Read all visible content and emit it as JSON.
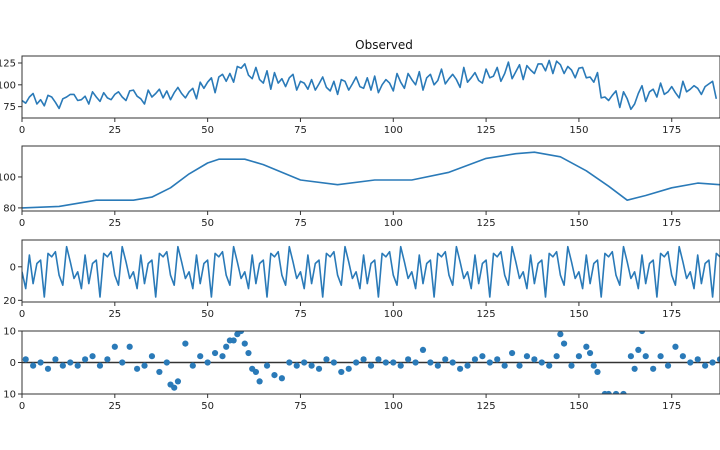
{
  "chart_data": [
    {
      "type": "line",
      "title": "Observed",
      "xlabel": "",
      "ylabel": "",
      "xlim": [
        0,
        188
      ],
      "ylim": [
        62,
        133
      ],
      "x_ticks": [
        0,
        25,
        50,
        75,
        100,
        125,
        150,
        175
      ],
      "y_ticks": [
        75,
        100,
        125
      ],
      "y_tick_labels": [
        "75",
        "100",
        "125"
      ],
      "grid": false,
      "series": [
        {
          "color": "#2a7ab8",
          "values": [
            82,
            79,
            86,
            90,
            78,
            83,
            76,
            88,
            86,
            80,
            73,
            84,
            86,
            89,
            89,
            82,
            83,
            87,
            78,
            92,
            86,
            81,
            91,
            85,
            83,
            89,
            92,
            86,
            82,
            93,
            94,
            87,
            84,
            78,
            94,
            86,
            90,
            95,
            85,
            93,
            83,
            91,
            97,
            90,
            85,
            92,
            96,
            84,
            103,
            96,
            103,
            108,
            91,
            109,
            112,
            104,
            113,
            103,
            121,
            119,
            124,
            111,
            107,
            120,
            106,
            102,
            116,
            95,
            114,
            102,
            107,
            98,
            108,
            112,
            94,
            104,
            102,
            95,
            106,
            94,
            101,
            109,
            97,
            93,
            104,
            89,
            106,
            104,
            94,
            101,
            109,
            98,
            96,
            108,
            94,
            110,
            91,
            100,
            106,
            102,
            93,
            113,
            103,
            96,
            113,
            106,
            100,
            115,
            94,
            108,
            112,
            100,
            105,
            118,
            101,
            107,
            112,
            106,
            97,
            120,
            103,
            108,
            114,
            105,
            102,
            118,
            108,
            110,
            120,
            104,
            113,
            126,
            107,
            115,
            123,
            106,
            122,
            117,
            113,
            124,
            124,
            116,
            128,
            113,
            127,
            123,
            113,
            121,
            117,
            108,
            119,
            120,
            108,
            109,
            103,
            114,
            85,
            86,
            82,
            88,
            93,
            74,
            92,
            84,
            72,
            78,
            90,
            99,
            81,
            92,
            95,
            86,
            102,
            89,
            92,
            98,
            91,
            85,
            104,
            92,
            95,
            99,
            96,
            89,
            98,
            101,
            104,
            84
          ]
        }
      ]
    },
    {
      "type": "line",
      "title": "",
      "xlabel": "",
      "ylabel": "",
      "xlim": [
        0,
        188
      ],
      "ylim": [
        78,
        120
      ],
      "x_ticks": [
        0,
        25,
        50,
        75,
        100,
        125,
        150,
        175
      ],
      "y_ticks": [
        80,
        100
      ],
      "y_tick_labels": [
        "80",
        "100"
      ],
      "grid": false,
      "series": [
        {
          "color": "#2a7ab8",
          "points": [
            [
              0,
              80
            ],
            [
              10,
              81
            ],
            [
              20,
              85
            ],
            [
              30,
              85
            ],
            [
              35,
              87
            ],
            [
              40,
              93
            ],
            [
              45,
              102
            ],
            [
              50,
              109
            ],
            [
              53,
              111.5
            ],
            [
              60,
              111.5
            ],
            [
              65,
              108
            ],
            [
              75,
              98
            ],
            [
              85,
              95
            ],
            [
              95,
              98
            ],
            [
              105,
              98
            ],
            [
              115,
              103
            ],
            [
              125,
              112
            ],
            [
              133,
              115
            ],
            [
              138,
              116
            ],
            [
              145,
              113
            ],
            [
              152,
              104
            ],
            [
              158,
              94
            ],
            [
              163,
              85
            ],
            [
              168,
              88
            ],
            [
              175,
              93
            ],
            [
              182,
              96
            ],
            [
              188,
              95
            ]
          ]
        }
      ]
    },
    {
      "type": "line",
      "title": "",
      "xlabel": "",
      "ylabel": "",
      "xlim": [
        0,
        188
      ],
      "ylim": [
        -21,
        16
      ],
      "x_ticks": [
        0,
        25,
        50,
        75,
        100,
        125,
        150,
        175
      ],
      "y_ticks": [
        0,
        -20
      ],
      "y_tick_labels": [
        "0",
        "20"
      ],
      "grid": false,
      "series": [
        {
          "color": "#2a7ab8",
          "pattern": [
            -3,
            -13,
            7,
            -10,
            2,
            4,
            -18,
            8,
            6,
            9,
            -5,
            -11,
            12,
            3,
            -7
          ],
          "length": 189
        }
      ]
    },
    {
      "type": "scatter",
      "title": "",
      "xlabel": "",
      "ylabel": "",
      "xlim": [
        0,
        188
      ],
      "ylim": [
        -10,
        10
      ],
      "x_ticks": [
        0,
        25,
        50,
        75,
        100,
        125,
        150,
        175
      ],
      "y_ticks": [
        10,
        0,
        -10
      ],
      "y_tick_labels": [
        "10",
        "0",
        "10"
      ],
      "grid": false,
      "baseline": 0,
      "series": [
        {
          "color": "#2a7ab8",
          "points": [
            [
              1,
              1
            ],
            [
              3,
              -1
            ],
            [
              5,
              0
            ],
            [
              7,
              -2
            ],
            [
              9,
              1
            ],
            [
              11,
              -1
            ],
            [
              13,
              0
            ],
            [
              15,
              -1
            ],
            [
              17,
              1
            ],
            [
              19,
              2
            ],
            [
              21,
              -1
            ],
            [
              23,
              1
            ],
            [
              25,
              5
            ],
            [
              27,
              0
            ],
            [
              29,
              5
            ],
            [
              31,
              -2
            ],
            [
              33,
              -1
            ],
            [
              35,
              2
            ],
            [
              37,
              -3
            ],
            [
              39,
              0
            ],
            [
              40,
              -7
            ],
            [
              41,
              -8
            ],
            [
              42,
              -6
            ],
            [
              44,
              6
            ],
            [
              46,
              -1
            ],
            [
              48,
              2
            ],
            [
              50,
              0
            ],
            [
              52,
              3
            ],
            [
              54,
              2
            ],
            [
              55,
              5
            ],
            [
              56,
              7
            ],
            [
              57,
              7
            ],
            [
              58,
              9
            ],
            [
              59,
              10
            ],
            [
              60,
              6
            ],
            [
              61,
              3
            ],
            [
              62,
              -2
            ],
            [
              63,
              -3
            ],
            [
              64,
              -6
            ],
            [
              66,
              -1
            ],
            [
              68,
              -4
            ],
            [
              70,
              -5
            ],
            [
              72,
              0
            ],
            [
              74,
              -1
            ],
            [
              76,
              0
            ],
            [
              78,
              -1
            ],
            [
              80,
              -2
            ],
            [
              82,
              1
            ],
            [
              84,
              0
            ],
            [
              86,
              -3
            ],
            [
              88,
              -2
            ],
            [
              90,
              0
            ],
            [
              92,
              1
            ],
            [
              94,
              -1
            ],
            [
              96,
              1
            ],
            [
              98,
              0
            ],
            [
              100,
              0
            ],
            [
              102,
              -1
            ],
            [
              104,
              1
            ],
            [
              106,
              0
            ],
            [
              108,
              4
            ],
            [
              110,
              0
            ],
            [
              112,
              -1
            ],
            [
              114,
              1
            ],
            [
              116,
              0
            ],
            [
              118,
              -2
            ],
            [
              120,
              -1
            ],
            [
              122,
              1
            ],
            [
              124,
              2
            ],
            [
              126,
              0
            ],
            [
              128,
              1
            ],
            [
              130,
              -1
            ],
            [
              132,
              3
            ],
            [
              134,
              -1
            ],
            [
              136,
              2
            ],
            [
              138,
              1
            ],
            [
              140,
              0
            ],
            [
              142,
              -1
            ],
            [
              144,
              2
            ],
            [
              145,
              9
            ],
            [
              146,
              6
            ],
            [
              148,
              -1
            ],
            [
              150,
              2
            ],
            [
              152,
              5
            ],
            [
              153,
              3
            ],
            [
              154,
              -1
            ],
            [
              155,
              -3
            ],
            [
              157,
              -10
            ],
            [
              158,
              -10
            ],
            [
              160,
              -10
            ],
            [
              162,
              -10
            ],
            [
              164,
              2
            ],
            [
              165,
              -2
            ],
            [
              166,
              4
            ],
            [
              167,
              10
            ],
            [
              168,
              2
            ],
            [
              170,
              -2
            ],
            [
              172,
              2
            ],
            [
              174,
              -1
            ],
            [
              176,
              5
            ],
            [
              178,
              2
            ],
            [
              180,
              0
            ],
            [
              182,
              1
            ],
            [
              184,
              -1
            ],
            [
              186,
              0
            ],
            [
              188,
              1
            ]
          ]
        }
      ]
    }
  ],
  "labels": {
    "observed_title": "Observed",
    "panel1_ytick_0": "75",
    "panel1_ytick_1": "100",
    "panel1_ytick_2": "125",
    "panel2_ytick_0": "80",
    "panel2_ytick_1": "100",
    "panel3_ytick_0": "0",
    "panel3_ytick_1": "20",
    "panel4_ytick_0": "10",
    "panel4_ytick_1": "0",
    "panel4_ytick_2": "10",
    "x_ticks": [
      "0",
      "25",
      "50",
      "75",
      "100",
      "125",
      "150",
      "175"
    ]
  }
}
